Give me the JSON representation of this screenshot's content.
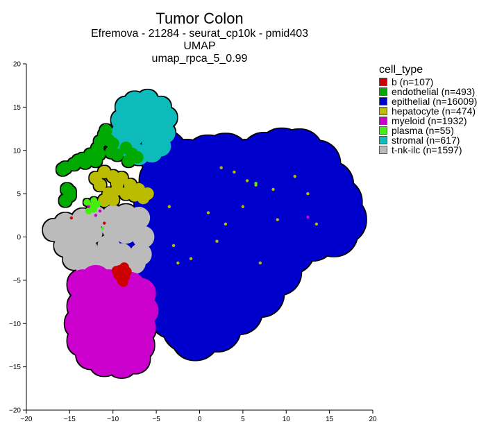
{
  "chart_data": {
    "type": "scatter",
    "title": "Tumor Colon",
    "subtitle_lines": [
      "Efremova - 21284 - seurat_cp10k - pmid403",
      "UMAP",
      "umap_rpca_5_0.99"
    ],
    "xlim": [
      -20,
      20
    ],
    "ylim": [
      -20,
      20
    ],
    "xticks": [
      -20,
      -15,
      -10,
      -5,
      0,
      5,
      10,
      15,
      20
    ],
    "yticks": [
      -20,
      -15,
      -10,
      -5,
      0,
      5,
      10,
      15,
      20
    ],
    "grid": false,
    "legend_position": "right",
    "legend_title": "cell_type",
    "series": [
      {
        "name": "b (n=107)",
        "color": "#cc0000",
        "count": 107,
        "points": [
          [
            -9.2,
            -3.8
          ],
          [
            -8.9,
            -4.2
          ],
          [
            -8.6,
            -4.6
          ],
          [
            -9.4,
            -4.4
          ],
          [
            -8.7,
            -3.5
          ],
          [
            -9.0,
            -5.0
          ],
          [
            -8.4,
            -4.0
          ],
          [
            -9.6,
            -3.9
          ],
          [
            -8.8,
            -5.2
          ],
          [
            -14.8,
            2.2
          ],
          [
            -11.0,
            1.6
          ]
        ]
      },
      {
        "name": "endothelial (n=493)",
        "color": "#00aa00",
        "count": 493,
        "points": [
          [
            -11.0,
            11.8
          ],
          [
            -10.5,
            11.2
          ],
          [
            -11.8,
            10.2
          ],
          [
            -12.6,
            9.5
          ],
          [
            -13.5,
            9.0
          ],
          [
            -14.5,
            8.4
          ],
          [
            -15.5,
            8.0
          ],
          [
            -15.8,
            7.8
          ],
          [
            -10.0,
            10.8
          ],
          [
            -9.5,
            9.5
          ],
          [
            -11.5,
            11.0
          ],
          [
            -10.8,
            12.3
          ],
          [
            -12.0,
            8.8
          ],
          [
            -14.0,
            8.8
          ],
          [
            -10.2,
            9.8
          ],
          [
            -15.3,
            5.5
          ],
          [
            -15.0,
            4.8
          ],
          [
            -15.5,
            4.2
          ],
          [
            -15.0,
            5.2
          ],
          [
            -8.5,
            10.3
          ],
          [
            -7.8,
            9.6
          ],
          [
            -8.2,
            8.8
          ],
          [
            -7.2,
            9.2
          ],
          [
            -11.6,
            9.6
          ],
          [
            -13.2,
            8.6
          ]
        ]
      },
      {
        "name": "epithelial (n=16009)",
        "color": "#0000cc",
        "count": 16009,
        "points": [
          [
            -3.5,
            8.0
          ],
          [
            -1.5,
            8.5
          ],
          [
            1.0,
            9.0
          ],
          [
            3.0,
            9.2
          ],
          [
            5.5,
            8.5
          ],
          [
            7.5,
            9.3
          ],
          [
            9.5,
            9.8
          ],
          [
            11.5,
            9.7
          ],
          [
            13.5,
            8.4
          ],
          [
            15.0,
            6.0
          ],
          [
            16.0,
            4.0
          ],
          [
            16.5,
            2.0
          ],
          [
            15.5,
            0.5
          ],
          [
            13.0,
            0.0
          ],
          [
            11.5,
            0.5
          ],
          [
            10.5,
            -1.5
          ],
          [
            9.0,
            -4.0
          ],
          [
            7.0,
            -6.5
          ],
          [
            4.5,
            -8.5
          ],
          [
            2.0,
            -10.5
          ],
          [
            -0.5,
            -11.5
          ],
          [
            -1.5,
            -10.5
          ],
          [
            -3.0,
            -9.0
          ],
          [
            -5.0,
            -8.0
          ],
          [
            -6.5,
            -7.0
          ],
          [
            -7.2,
            -5.5
          ],
          [
            -7.5,
            -3.5
          ],
          [
            -6.8,
            -1.0
          ],
          [
            -5.6,
            1.0
          ],
          [
            -4.8,
            4.0
          ],
          [
            -4.2,
            6.5
          ],
          [
            -3.8,
            8.8
          ],
          [
            -2.0,
            6.0
          ],
          [
            0.0,
            5.0
          ],
          [
            2.0,
            6.5
          ],
          [
            4.0,
            5.0
          ],
          [
            6.0,
            4.0
          ],
          [
            8.0,
            6.0
          ],
          [
            10.0,
            5.0
          ],
          [
            12.0,
            6.0
          ],
          [
            13.0,
            3.0
          ],
          [
            14.5,
            2.0
          ],
          [
            10.5,
            2.5
          ],
          [
            7.5,
            2.0
          ],
          [
            5.0,
            1.5
          ],
          [
            3.0,
            0.0
          ],
          [
            0.5,
            2.0
          ],
          [
            -2.5,
            3.0
          ],
          [
            -4.0,
            1.5
          ],
          [
            -2.0,
            -1.0
          ],
          [
            0.0,
            -2.0
          ],
          [
            2.5,
            -3.0
          ],
          [
            5.0,
            -2.0
          ],
          [
            7.0,
            -1.5
          ],
          [
            -5.0,
            -2.5
          ],
          [
            -3.0,
            -4.5
          ],
          [
            -1.0,
            -5.5
          ],
          [
            1.5,
            -6.0
          ],
          [
            4.0,
            -5.5
          ],
          [
            6.0,
            -4.5
          ],
          [
            -4.0,
            -6.5
          ],
          [
            -2.0,
            -8.0
          ],
          [
            0.5,
            -9.0
          ],
          [
            3.0,
            -8.0
          ],
          [
            -6.0,
            -4.5
          ],
          [
            -1.0,
            3.8
          ],
          [
            9.0,
            3.5
          ],
          [
            12.0,
            4.0
          ],
          [
            11.0,
            7.5
          ],
          [
            6.5,
            7.0
          ],
          [
            1.5,
            7.8
          ],
          [
            -3.0,
            5.5
          ],
          [
            -6.0,
            -2.0
          ],
          [
            3.5,
            -4.5
          ],
          [
            8.0,
            -2.5
          ],
          [
            -3.8,
            9.0
          ],
          [
            -4.2,
            9.6
          ],
          [
            -1.0,
            -3.0
          ]
        ]
      },
      {
        "name": "hepatocyte (n=474)",
        "color": "#bbbb00",
        "count": 474,
        "points": [
          [
            -11.0,
            7.5
          ],
          [
            -10.0,
            7.0
          ],
          [
            -9.0,
            6.8
          ],
          [
            -8.0,
            6.0
          ],
          [
            -7.0,
            5.5
          ],
          [
            -6.0,
            5.0
          ],
          [
            -11.5,
            6.0
          ],
          [
            -10.5,
            5.0
          ],
          [
            -9.5,
            5.5
          ],
          [
            -11.0,
            4.2
          ],
          [
            -10.0,
            4.3
          ],
          [
            -8.5,
            5.0
          ],
          [
            -6.5,
            4.5
          ],
          [
            -12.0,
            6.8
          ],
          [
            -9.5,
            6.2
          ],
          [
            -7.5,
            4.8
          ],
          [
            2.5,
            8.0
          ],
          [
            5.5,
            6.5
          ],
          [
            8.5,
            5.5
          ],
          [
            11.0,
            7.0
          ],
          [
            12.5,
            5.0
          ],
          [
            1.0,
            2.8
          ],
          [
            3.0,
            1.5
          ],
          [
            2.0,
            -0.5
          ],
          [
            -3.0,
            -1.0
          ],
          [
            -2.5,
            -3.0
          ],
          [
            13.5,
            1.5
          ],
          [
            5.0,
            3.5
          ],
          [
            7.0,
            -3.0
          ],
          [
            -1.0,
            -2.5
          ],
          [
            -3.5,
            3.5
          ],
          [
            9.0,
            2.0
          ],
          [
            4.0,
            7.5
          ],
          [
            6.5,
            6.0
          ]
        ]
      },
      {
        "name": "myeloid (n=1932)",
        "color": "#cc00cc",
        "count": 1932,
        "points": [
          [
            -13.5,
            -5.5
          ],
          [
            -12.0,
            -5.0
          ],
          [
            -10.5,
            -5.5
          ],
          [
            -9.5,
            -6.0
          ],
          [
            -8.0,
            -5.8
          ],
          [
            -6.8,
            -6.5
          ],
          [
            -6.5,
            -8.5
          ],
          [
            -6.8,
            -10.5
          ],
          [
            -7.0,
            -12.5
          ],
          [
            -7.5,
            -14.0
          ],
          [
            -9.0,
            -14.5
          ],
          [
            -11.0,
            -14.3
          ],
          [
            -12.5,
            -13.5
          ],
          [
            -13.5,
            -12.0
          ],
          [
            -13.8,
            -10.0
          ],
          [
            -13.5,
            -8.0
          ],
          [
            -11.0,
            -8.0
          ],
          [
            -10.0,
            -10.0
          ],
          [
            -9.0,
            -12.0
          ],
          [
            -8.5,
            -8.5
          ],
          [
            -12.0,
            -10.5
          ],
          [
            -11.5,
            -12.5
          ],
          [
            -9.0,
            -7.0
          ],
          [
            -12.5,
            -7.0
          ],
          [
            -10.0,
            -13.5
          ],
          [
            -8.0,
            -11.0
          ],
          [
            -12.8,
            3.5
          ],
          [
            -12.0,
            2.5
          ],
          [
            -11.5,
            3.0
          ],
          [
            12.5,
            2.3
          ]
        ]
      },
      {
        "name": "plasma (n=55)",
        "color": "#44ee11",
        "count": 55,
        "points": [
          [
            -13.0,
            4.0
          ],
          [
            -12.5,
            3.6
          ],
          [
            -12.2,
            3.2
          ],
          [
            -12.8,
            3.0
          ],
          [
            -12.2,
            4.2
          ],
          [
            -11.8,
            3.8
          ],
          [
            6.5,
            6.2
          ],
          [
            -11.2,
            1.0
          ]
        ]
      },
      {
        "name": "stromal (n=617)",
        "color": "#11bbbb",
        "count": 617,
        "points": [
          [
            -8.5,
            15.0
          ],
          [
            -7.5,
            15.6
          ],
          [
            -6.0,
            15.8
          ],
          [
            -4.5,
            15.0
          ],
          [
            -3.8,
            13.8
          ],
          [
            -4.0,
            12.0
          ],
          [
            -4.5,
            10.5
          ],
          [
            -5.5,
            9.8
          ],
          [
            -7.0,
            9.5
          ],
          [
            -8.5,
            10.5
          ],
          [
            -9.0,
            12.0
          ],
          [
            -9.0,
            13.5
          ],
          [
            -7.5,
            13.0
          ],
          [
            -6.0,
            12.5
          ],
          [
            -5.0,
            13.5
          ],
          [
            -6.5,
            14.5
          ],
          [
            -7.8,
            11.5
          ],
          [
            -5.5,
            11.0
          ],
          [
            -8.2,
            14.2
          ],
          [
            -4.8,
            14.4
          ]
        ]
      },
      {
        "name": "t-nk-ilc (n=1597)",
        "color": "#bbbbbb",
        "count": 1597,
        "points": [
          [
            -13.5,
            2.0
          ],
          [
            -12.0,
            2.3
          ],
          [
            -10.0,
            2.4
          ],
          [
            -8.5,
            2.5
          ],
          [
            -7.0,
            2.2
          ],
          [
            -6.5,
            0.0
          ],
          [
            -6.8,
            -2.0
          ],
          [
            -7.5,
            -3.0
          ],
          [
            -9.0,
            -3.5
          ],
          [
            -11.0,
            -3.8
          ],
          [
            -13.0,
            -3.5
          ],
          [
            -14.5,
            -2.5
          ],
          [
            -15.5,
            -1.0
          ],
          [
            -16.8,
            0.8
          ],
          [
            -15.5,
            1.5
          ],
          [
            -12.5,
            0.5
          ],
          [
            -10.5,
            -1.0
          ],
          [
            -8.5,
            0.5
          ],
          [
            -11.5,
            -2.5
          ],
          [
            -9.0,
            -2.0
          ],
          [
            -14.0,
            0.0
          ],
          [
            -7.5,
            1.0
          ],
          [
            -13.0,
            -1.5
          ],
          [
            -10.0,
            1.0
          ],
          [
            -12.0,
            -3.0
          ],
          [
            -15.0,
            0.5
          ],
          [
            -10.8,
            -3.2
          ]
        ]
      }
    ]
  }
}
